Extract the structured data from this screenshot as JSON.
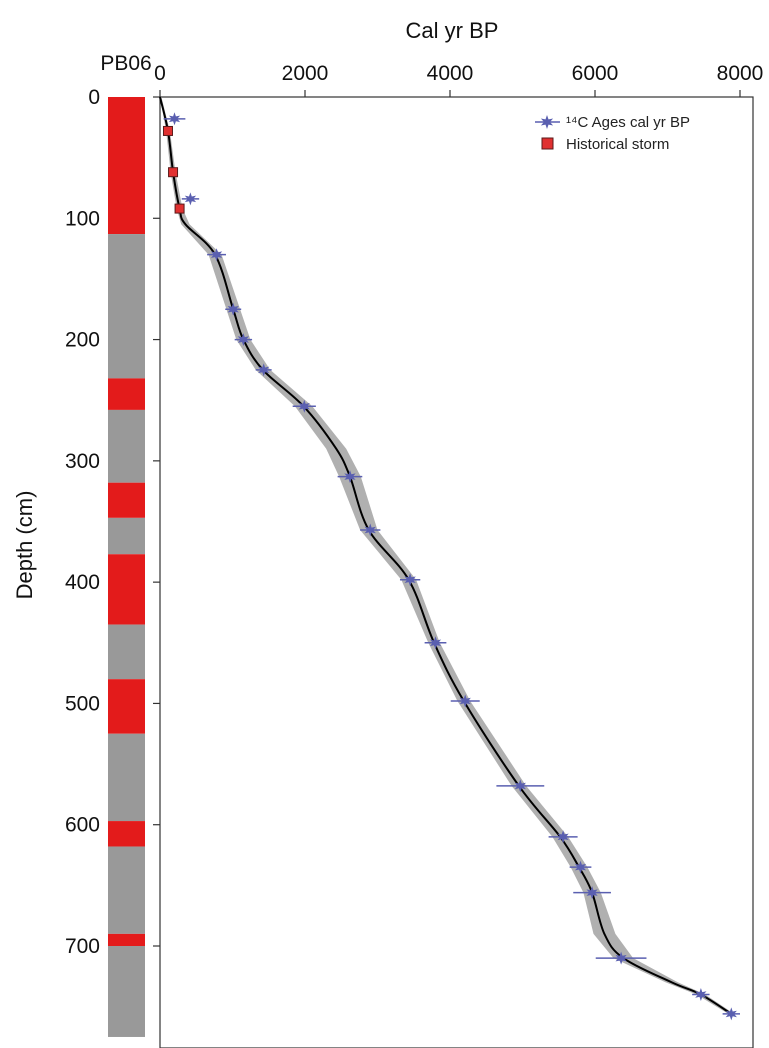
{
  "chart_data": {
    "type": "scatter",
    "title": "",
    "core_label": "PB06",
    "xlabel": "Cal yr BP",
    "ylabel": "Depth (cm)",
    "xlim": [
      0,
      8000
    ],
    "ylim": [
      0,
      775
    ],
    "x_ticks": [
      0,
      2000,
      4000,
      6000,
      8000
    ],
    "y_ticks": [
      0,
      100,
      200,
      300,
      400,
      500,
      600,
      700
    ],
    "legend": [
      {
        "label": "¹⁴C Ages cal yr BP",
        "marker": "blue-star",
        "color": "#5a5fb0"
      },
      {
        "label": "Historical storm",
        "marker": "red-square",
        "color": "#e03030"
      }
    ],
    "legend_position": "top-right",
    "c14_ages": [
      {
        "depth": 18,
        "age": 200,
        "err": 150
      },
      {
        "depth": 84,
        "age": 420,
        "err": 120
      },
      {
        "depth": 130,
        "age": 780,
        "err": 130
      },
      {
        "depth": 175,
        "age": 1010,
        "err": 110
      },
      {
        "depth": 200,
        "age": 1150,
        "err": 120
      },
      {
        "depth": 225,
        "age": 1430,
        "err": 110
      },
      {
        "depth": 255,
        "age": 1990,
        "err": 160
      },
      {
        "depth": 313,
        "age": 2620,
        "err": 170
      },
      {
        "depth": 357,
        "age": 2900,
        "err": 140
      },
      {
        "depth": 398,
        "age": 3450,
        "err": 140
      },
      {
        "depth": 450,
        "age": 3800,
        "err": 150
      },
      {
        "depth": 498,
        "age": 4210,
        "err": 200
      },
      {
        "depth": 568,
        "age": 4970,
        "err": 330
      },
      {
        "depth": 610,
        "age": 5560,
        "err": 200
      },
      {
        "depth": 635,
        "age": 5800,
        "err": 150
      },
      {
        "depth": 656,
        "age": 5960,
        "err": 260
      },
      {
        "depth": 710,
        "age": 6360,
        "err": 350
      },
      {
        "depth": 740,
        "age": 7460,
        "err": 120
      },
      {
        "depth": 756,
        "age": 7880,
        "err": 120
      }
    ],
    "historical_storms": [
      {
        "depth": 28,
        "age": 110
      },
      {
        "depth": 62,
        "age": 180
      },
      {
        "depth": 92,
        "age": 270
      }
    ],
    "age_model": [
      [
        0,
        0
      ],
      [
        28,
        110
      ],
      [
        62,
        180
      ],
      [
        92,
        270
      ],
      [
        105,
        350
      ],
      [
        130,
        760
      ],
      [
        175,
        1010
      ],
      [
        200,
        1150
      ],
      [
        225,
        1420
      ],
      [
        255,
        1980
      ],
      [
        290,
        2430
      ],
      [
        313,
        2620
      ],
      [
        357,
        2880
      ],
      [
        398,
        3430
      ],
      [
        450,
        3780
      ],
      [
        498,
        4190
      ],
      [
        568,
        4950
      ],
      [
        610,
        5520
      ],
      [
        635,
        5780
      ],
      [
        656,
        5960
      ],
      [
        690,
        6130
      ],
      [
        710,
        6390
      ],
      [
        730,
        7060
      ],
      [
        740,
        7460
      ],
      [
        756,
        7880
      ]
    ],
    "age_model_band_halfwidth": [
      [
        0,
        20
      ],
      [
        92,
        40
      ],
      [
        130,
        90
      ],
      [
        225,
        100
      ],
      [
        255,
        120
      ],
      [
        313,
        150
      ],
      [
        357,
        120
      ],
      [
        450,
        80
      ],
      [
        568,
        100
      ],
      [
        656,
        120
      ],
      [
        700,
        160
      ],
      [
        740,
        60
      ],
      [
        756,
        40
      ]
    ],
    "core_units": [
      {
        "top": 0,
        "bottom": 113,
        "color": "#e31b1b"
      },
      {
        "top": 113,
        "bottom": 232,
        "color": "#999999"
      },
      {
        "top": 232,
        "bottom": 258,
        "color": "#e31b1b"
      },
      {
        "top": 258,
        "bottom": 318,
        "color": "#999999"
      },
      {
        "top": 318,
        "bottom": 347,
        "color": "#e31b1b"
      },
      {
        "top": 347,
        "bottom": 377,
        "color": "#999999"
      },
      {
        "top": 377,
        "bottom": 435,
        "color": "#e31b1b"
      },
      {
        "top": 435,
        "bottom": 480,
        "color": "#999999"
      },
      {
        "top": 480,
        "bottom": 525,
        "color": "#e31b1b"
      },
      {
        "top": 525,
        "bottom": 597,
        "color": "#999999"
      },
      {
        "top": 597,
        "bottom": 618,
        "color": "#e31b1b"
      },
      {
        "top": 618,
        "bottom": 690,
        "color": "#999999"
      },
      {
        "top": 690,
        "bottom": 700,
        "color": "#e31b1b"
      },
      {
        "top": 700,
        "bottom": 775,
        "color": "#999999"
      }
    ],
    "colors": {
      "c14_marker": "#5a5fb0",
      "storm_marker": "#e03030",
      "storm_edge": "#5a1a1a",
      "age_model_line": "#000000",
      "age_model_band": "#b0b0b0"
    }
  }
}
